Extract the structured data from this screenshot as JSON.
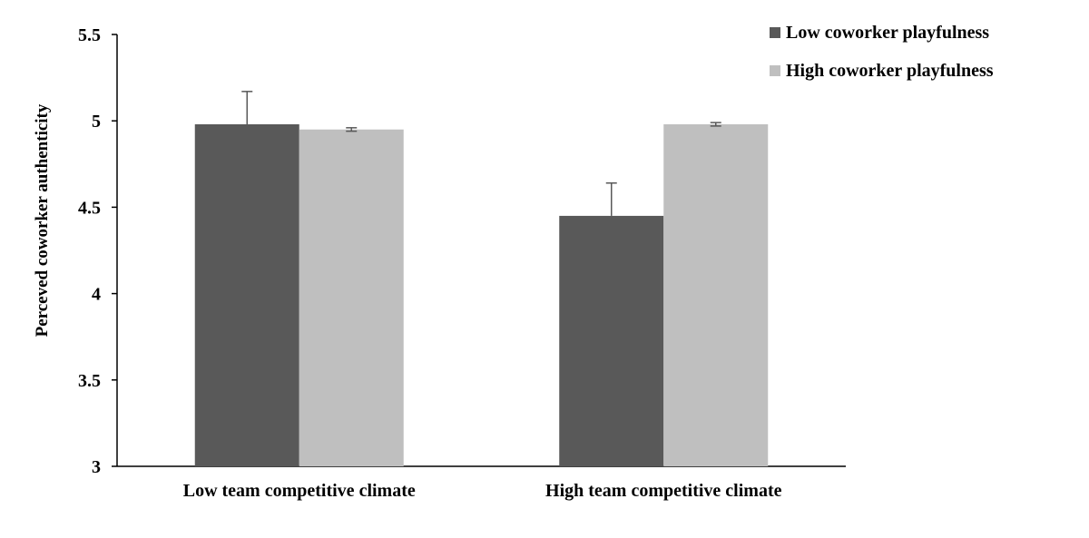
{
  "chart_data": {
    "type": "bar",
    "title": "",
    "xlabel": "",
    "ylabel": "Perceved coworker authenticity",
    "ylim": [
      3,
      5.5
    ],
    "yticks": [
      "3",
      "3.5",
      "4",
      "4.5",
      "5",
      "5.5"
    ],
    "categories": [
      "Low team competitive climate",
      "High team competitive climate"
    ],
    "series": [
      {
        "name": "Low coworker playfulness",
        "color": "#595959",
        "values": [
          4.98,
          4.45
        ],
        "error_plus": [
          0.19,
          0.19
        ]
      },
      {
        "name": "High coworker playfulness",
        "color": "#bfbfbf",
        "values": [
          4.95,
          4.98
        ],
        "error_plus": [
          0.01,
          0.01
        ]
      }
    ],
    "grid": false,
    "legend_position": "top-right"
  }
}
